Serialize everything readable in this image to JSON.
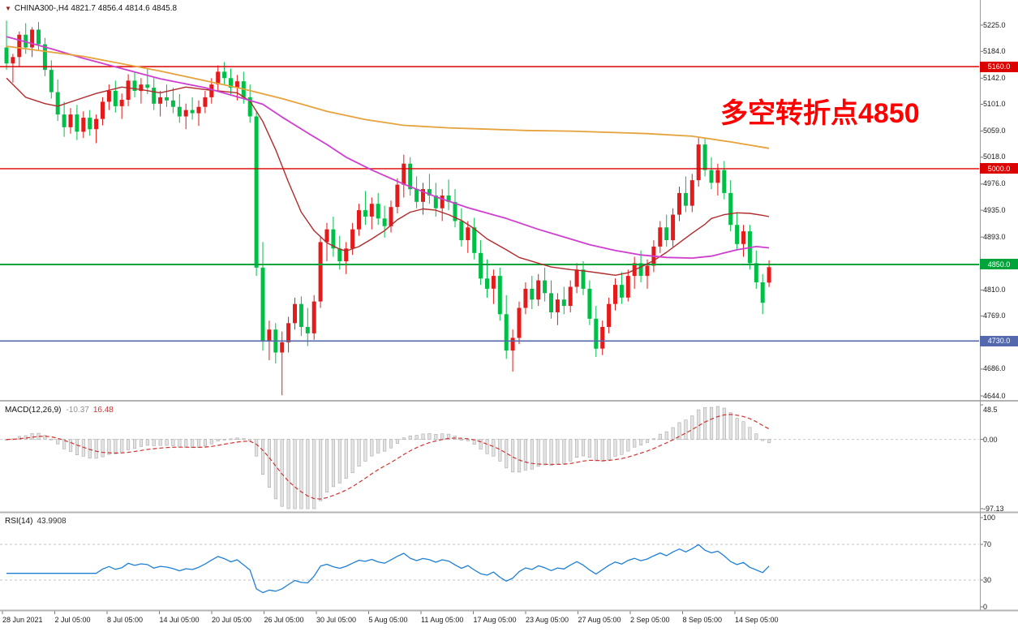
{
  "header": {
    "dropdown_icon": "▼",
    "symbol_info": "CHINA300-,H4 4821.7 4856.4 4814.6 4845.8"
  },
  "annotation": {
    "text": "多空转折点4850",
    "color": "#ff0000"
  },
  "chart_data": {
    "type": "candlestick",
    "symbol": "CHINA300-",
    "timeframe": "H4",
    "last_ohlc": {
      "open": 4821.7,
      "high": 4856.4,
      "low": 4814.6,
      "close": 4845.8
    },
    "price_axis": {
      "min": 4644.0,
      "max": 5225.0,
      "tick_labels": [
        "5225.0",
        "5184.0",
        "5142.0",
        "5101.0",
        "5059.0",
        "5018.0",
        "4976.0",
        "4935.0",
        "4893.0",
        "4852.0",
        "4810.0",
        "4769.0",
        "4727.0",
        "4686.0",
        "4644.0"
      ]
    },
    "time_axis": {
      "labels": [
        "28 Jun 2021",
        "2 Jul 05:00",
        "8 Jul 05:00",
        "14 Jul 05:00",
        "20 Jul 05:00",
        "26 Jul 05:00",
        "30 Jul 05:00",
        "5 Aug 05:00",
        "11 Aug 05:00",
        "17 Aug 05:00",
        "23 Aug 05:00",
        "27 Aug 05:00",
        "2 Sep 05:00",
        "8 Sep 05:00",
        "14 Sep 05:00"
      ]
    },
    "levels": [
      {
        "value": 5160.0,
        "label": "5160.0",
        "color": "#dd0000",
        "width": 1.4
      },
      {
        "value": 5000.0,
        "label": "5000.0",
        "color": "#dd0000",
        "width": 1.4
      },
      {
        "value": 4850.0,
        "label": "4850.0",
        "color": "#00a43a",
        "width": 2
      },
      {
        "value": 4730.0,
        "label": "4730.0",
        "color": "#5468ae",
        "width": 1.6
      }
    ],
    "colors": {
      "up": "#e51a1a",
      "down": "#00bf47",
      "macd_bar_fill": "#e3e3e3",
      "macd_bar_stroke": "#a8a8a8",
      "macd_signal": "#d23333",
      "rsi_line": "#1d7fd6"
    },
    "candles": [
      [
        5190,
        5232,
        5155,
        5165
      ],
      [
        5165,
        5180,
        5135,
        5175
      ],
      [
        5175,
        5215,
        5160,
        5210
      ],
      [
        5210,
        5228,
        5180,
        5190
      ],
      [
        5190,
        5222,
        5175,
        5218
      ],
      [
        5218,
        5230,
        5185,
        5195
      ],
      [
        5195,
        5205,
        5145,
        5155
      ],
      [
        5155,
        5170,
        5110,
        5120
      ],
      [
        5120,
        5140,
        5075,
        5085
      ],
      [
        5085,
        5105,
        5050,
        5065
      ],
      [
        5065,
        5095,
        5055,
        5085
      ],
      [
        5085,
        5100,
        5045,
        5058
      ],
      [
        5058,
        5090,
        5048,
        5080
      ],
      [
        5080,
        5092,
        5052,
        5062
      ],
      [
        5062,
        5085,
        5040,
        5078
      ],
      [
        5078,
        5112,
        5068,
        5105
      ],
      [
        5105,
        5132,
        5092,
        5122
      ],
      [
        5122,
        5138,
        5088,
        5098
      ],
      [
        5098,
        5118,
        5078,
        5108
      ],
      [
        5108,
        5148,
        5098,
        5138
      ],
      [
        5138,
        5152,
        5112,
        5122
      ],
      [
        5122,
        5142,
        5102,
        5132
      ],
      [
        5132,
        5157,
        5117,
        5127
      ],
      [
        5127,
        5142,
        5092,
        5102
      ],
      [
        5102,
        5122,
        5082,
        5112
      ],
      [
        5112,
        5132,
        5097,
        5107
      ],
      [
        5107,
        5127,
        5087,
        5097
      ],
      [
        5097,
        5117,
        5072,
        5082
      ],
      [
        5082,
        5102,
        5062,
        5092
      ],
      [
        5092,
        5112,
        5077,
        5087
      ],
      [
        5087,
        5107,
        5067,
        5097
      ],
      [
        5097,
        5122,
        5087,
        5112
      ],
      [
        5112,
        5142,
        5102,
        5132
      ],
      [
        5132,
        5162,
        5122,
        5152
      ],
      [
        5152,
        5167,
        5132,
        5142
      ],
      [
        5142,
        5157,
        5117,
        5127
      ],
      [
        5127,
        5147,
        5107,
        5137
      ],
      [
        5137,
        5152,
        5102,
        5112
      ],
      [
        5112,
        5132,
        5072,
        5082
      ],
      [
        5082,
        5090,
        4832,
        4845
      ],
      [
        4845,
        4885,
        4715,
        4730
      ],
      [
        4730,
        4762,
        4700,
        4748
      ],
      [
        4748,
        4758,
        4695,
        4712
      ],
      [
        4712,
        4745,
        4645,
        4728
      ],
      [
        4728,
        4768,
        4712,
        4758
      ],
      [
        4758,
        4798,
        4748,
        4788
      ],
      [
        4788,
        4800,
        4738,
        4752
      ],
      [
        4752,
        4782,
        4722,
        4742
      ],
      [
        4742,
        4802,
        4732,
        4792
      ],
      [
        4792,
        4895,
        4782,
        4885
      ],
      [
        4885,
        4915,
        4855,
        4905
      ],
      [
        4905,
        4925,
        4862,
        4875
      ],
      [
        4875,
        4895,
        4842,
        4855
      ],
      [
        4855,
        4885,
        4835,
        4875
      ],
      [
        4875,
        4915,
        4865,
        4905
      ],
      [
        4905,
        4945,
        4895,
        4935
      ],
      [
        4935,
        4965,
        4912,
        4925
      ],
      [
        4925,
        4955,
        4905,
        4945
      ],
      [
        4945,
        4962,
        4912,
        4922
      ],
      [
        4922,
        4942,
        4892,
        4910
      ],
      [
        4910,
        4950,
        4900,
        4940
      ],
      [
        4940,
        4985,
        4930,
        4975
      ],
      [
        4975,
        5022,
        4955,
        5008
      ],
      [
        5008,
        5018,
        4958,
        4968
      ],
      [
        4968,
        4988,
        4938,
        4948
      ],
      [
        4948,
        4978,
        4928,
        4968
      ],
      [
        4968,
        4992,
        4945,
        4958
      ],
      [
        4958,
        4978,
        4925,
        4938
      ],
      [
        4938,
        4968,
        4918,
        4958
      ],
      [
        4958,
        4983,
        4935,
        4948
      ],
      [
        4948,
        4968,
        4908,
        4918
      ],
      [
        4918,
        4938,
        4878,
        4888
      ],
      [
        4888,
        4918,
        4868,
        4908
      ],
      [
        4908,
        4923,
        4858,
        4868
      ],
      [
        4868,
        4888,
        4818,
        4828
      ],
      [
        4828,
        4858,
        4798,
        4812
      ],
      [
        4812,
        4842,
        4788,
        4832
      ],
      [
        4832,
        4845,
        4762,
        4772
      ],
      [
        4772,
        4802,
        4702,
        4715
      ],
      [
        4715,
        4748,
        4682,
        4735
      ],
      [
        4735,
        4792,
        4725,
        4782
      ],
      [
        4782,
        4822,
        4772,
        4812
      ],
      [
        4812,
        4832,
        4780,
        4795
      ],
      [
        4795,
        4835,
        4785,
        4825
      ],
      [
        4825,
        4845,
        4792,
        4805
      ],
      [
        4805,
        4825,
        4765,
        4775
      ],
      [
        4775,
        4805,
        4755,
        4795
      ],
      [
        4795,
        4815,
        4772,
        4785
      ],
      [
        4785,
        4825,
        4775,
        4815
      ],
      [
        4815,
        4852,
        4805,
        4842
      ],
      [
        4842,
        4855,
        4802,
        4812
      ],
      [
        4812,
        4825,
        4755,
        4765
      ],
      [
        4765,
        4785,
        4705,
        4718
      ],
      [
        4718,
        4762,
        4708,
        4752
      ],
      [
        4752,
        4798,
        4742,
        4788
      ],
      [
        4788,
        4828,
        4778,
        4818
      ],
      [
        4818,
        4838,
        4788,
        4798
      ],
      [
        4798,
        4842,
        4792,
        4832
      ],
      [
        4832,
        4862,
        4812,
        4852
      ],
      [
        4852,
        4872,
        4822,
        4832
      ],
      [
        4832,
        4858,
        4812,
        4848
      ],
      [
        4848,
        4888,
        4838,
        4878
      ],
      [
        4878,
        4918,
        4868,
        4908
      ],
      [
        4908,
        4928,
        4878,
        4888
      ],
      [
        4888,
        4938,
        4878,
        4928
      ],
      [
        4928,
        4972,
        4918,
        4962
      ],
      [
        4962,
        4988,
        4932,
        4942
      ],
      [
        4942,
        4992,
        4932,
        4982
      ],
      [
        4982,
        5048,
        4972,
        5038
      ],
      [
        5038,
        5048,
        4988,
        4998
      ],
      [
        4998,
        5018,
        4968,
        4978
      ],
      [
        4978,
        5008,
        4958,
        4998
      ],
      [
        4998,
        5012,
        4952,
        4962
      ],
      [
        4962,
        4982,
        4902,
        4912
      ],
      [
        4912,
        4932,
        4872,
        4882
      ],
      [
        4882,
        4912,
        4862,
        4902
      ],
      [
        4902,
        4912,
        4842,
        4852
      ],
      [
        4852,
        4872,
        4812,
        4822
      ],
      [
        4822,
        4835,
        4772,
        4790
      ],
      [
        4821.7,
        4856.4,
        4814.6,
        4845.8
      ]
    ],
    "moving_averages": [
      {
        "name": "fast-ma",
        "color": "#b22a2a",
        "width": 1.4,
        "points": [
          [
            0,
            5142
          ],
          [
            3,
            5112
          ],
          [
            6,
            5102
          ],
          [
            8,
            5098
          ],
          [
            11,
            5108
          ],
          [
            14,
            5118
          ],
          [
            18,
            5128
          ],
          [
            21,
            5124
          ],
          [
            24,
            5119
          ],
          [
            28,
            5128
          ],
          [
            31,
            5124
          ],
          [
            34,
            5121
          ],
          [
            36,
            5119
          ],
          [
            38,
            5106
          ],
          [
            40,
            5074
          ],
          [
            42,
            5030
          ],
          [
            44,
            4979
          ],
          [
            46,
            4932
          ],
          [
            48,
            4903
          ],
          [
            50,
            4884
          ],
          [
            52,
            4874
          ],
          [
            53,
            4871
          ],
          [
            55,
            4878
          ],
          [
            57,
            4890
          ],
          [
            59,
            4903
          ],
          [
            61,
            4920
          ],
          [
            63,
            4932
          ],
          [
            65,
            4937
          ],
          [
            67,
            4935
          ],
          [
            69,
            4928
          ],
          [
            71,
            4919
          ],
          [
            73,
            4906
          ],
          [
            75,
            4890
          ],
          [
            78,
            4873
          ],
          [
            80,
            4861
          ],
          [
            83,
            4852
          ],
          [
            85,
            4846
          ],
          [
            88,
            4842
          ],
          [
            90,
            4840
          ],
          [
            93,
            4836
          ],
          [
            95,
            4833
          ],
          [
            97,
            4837
          ],
          [
            99,
            4846
          ],
          [
            101,
            4856
          ],
          [
            103,
            4869
          ],
          [
            105,
            4884
          ],
          [
            107,
            4899
          ],
          [
            109,
            4913
          ],
          [
            110,
            4922
          ],
          [
            112,
            4928
          ],
          [
            114,
            4931
          ],
          [
            116,
            4930
          ],
          [
            118,
            4927
          ],
          [
            119,
            4925
          ]
        ]
      },
      {
        "name": "mid-ma",
        "color": "#cf3ecf",
        "width": 1.8,
        "points": [
          [
            0,
            5207
          ],
          [
            7,
            5188
          ],
          [
            12,
            5173
          ],
          [
            18,
            5157
          ],
          [
            24,
            5141
          ],
          [
            31,
            5127
          ],
          [
            37,
            5110
          ],
          [
            40,
            5101
          ],
          [
            43,
            5081
          ],
          [
            47,
            5056
          ],
          [
            50,
            5038
          ],
          [
            53,
            5018
          ],
          [
            57,
            4998
          ],
          [
            62,
            4976
          ],
          [
            67,
            4956
          ],
          [
            72,
            4939
          ],
          [
            78,
            4922
          ],
          [
            83,
            4905
          ],
          [
            88,
            4890
          ],
          [
            91,
            4881
          ],
          [
            95,
            4872
          ],
          [
            99,
            4865
          ],
          [
            103,
            4861
          ],
          [
            107,
            4860
          ],
          [
            110,
            4863
          ],
          [
            114,
            4873
          ],
          [
            117,
            4878
          ],
          [
            119,
            4876
          ]
        ]
      },
      {
        "name": "slow-ma",
        "color": "#e6a23c",
        "width": 1.8,
        "points": [
          [
            0,
            5192
          ],
          [
            12,
            5176
          ],
          [
            24,
            5153
          ],
          [
            37,
            5125
          ],
          [
            43,
            5110
          ],
          [
            50,
            5090
          ],
          [
            56,
            5077
          ],
          [
            62,
            5068
          ],
          [
            69,
            5064
          ],
          [
            75,
            5062
          ],
          [
            81,
            5060
          ],
          [
            88,
            5059
          ],
          [
            94,
            5057
          ],
          [
            100,
            5055
          ],
          [
            107,
            5051
          ],
          [
            113,
            5042
          ],
          [
            119,
            5032
          ]
        ]
      }
    ],
    "macd": {
      "label": "MACD(12,26,9)",
      "value_main": "-10.37",
      "value_signal": "16.48",
      "fast": 12,
      "slow": 26,
      "signal": 9,
      "scale": {
        "min": -97.13,
        "max": 48.5,
        "ticks": [
          {
            "value": 48.5,
            "label": "48.5"
          },
          {
            "value": 0,
            "label": "0.00"
          },
          {
            "value": -97.13,
            "label": "-97.13"
          }
        ]
      }
    },
    "rsi": {
      "label": "RSI(14)",
      "value": "43.9908",
      "period": 14,
      "levels": [
        70,
        30
      ],
      "scale": {
        "min": 0,
        "max": 100,
        "ticks": [
          {
            "value": 100,
            "label": "100"
          },
          {
            "value": 70,
            "label": "70"
          },
          {
            "value": 30,
            "label": "30"
          },
          {
            "value": 0,
            "label": "0"
          }
        ]
      }
    }
  }
}
